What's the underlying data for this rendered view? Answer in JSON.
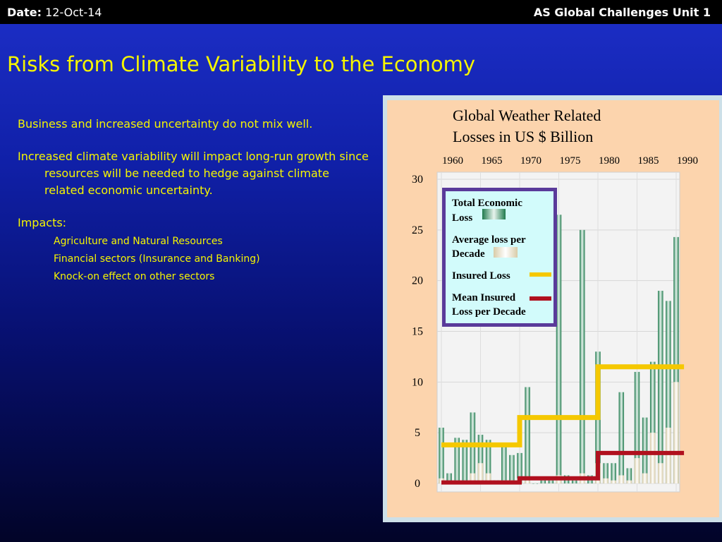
{
  "header": {
    "date_label": "Date:",
    "date_value": "12-Oct-14",
    "unit": "AS Global Challenges Unit 1"
  },
  "slide": {
    "title": "Risks from Climate Variability to the Economy",
    "bullets": [
      "Business and increased uncertainty do not mix well.",
      "Increased climate variability will impact long-run growth since  resources  will be needed to hedge against climate related economic uncertainty.",
      "Impacts:"
    ],
    "sub_bullets": [
      "Agriculture and Natural Resources",
      "Financial sectors (Insurance and Banking)",
      "Knock-on effect on other sectors"
    ]
  },
  "colors": {
    "background": "#1020a8",
    "title": "#f5f500",
    "economic_loss": "#2e8b5e",
    "average_loss": "#efe6cf",
    "insured_loss": "#f5c800",
    "mean_insured": "#b0101e",
    "legend_border": "#5a3a9a",
    "legend_bg": "#d2fbfb"
  },
  "chart_data": {
    "type": "bar",
    "title_lines": [
      "Global Weather Related",
      "Losses in US $ Billion"
    ],
    "x_ticks": [
      "1960",
      "1965",
      "1970",
      "1975",
      "1980",
      "1985",
      "1990"
    ],
    "y_ticks": [
      "0",
      "5",
      "10",
      "15",
      "20",
      "25",
      "30"
    ],
    "ylim": [
      0,
      30
    ],
    "xlim": [
      1960,
      1991
    ],
    "legend": {
      "placement": "top-left",
      "entries": [
        {
          "text": [
            "Total Economic",
            "Loss"
          ],
          "swatch": "bar"
        },
        {
          "text": [
            "Average loss per",
            "Decade"
          ],
          "swatch": "bar-light"
        },
        {
          "text": [
            "Insured Loss"
          ],
          "swatch": "line-insured"
        },
        {
          "text": [
            "Mean Insured",
            "Loss per Decade"
          ],
          "swatch": "line-mean"
        }
      ]
    },
    "total_economic_loss": {
      "years": [
        1960,
        1961,
        1962,
        1963,
        1964,
        1965,
        1966,
        1967,
        1968,
        1969,
        1970,
        1971,
        1972,
        1973,
        1974,
        1975,
        1976,
        1977,
        1978,
        1979,
        1980,
        1981,
        1982,
        1983,
        1984,
        1985,
        1986,
        1987,
        1988,
        1989,
        1990
      ],
      "values": [
        5.5,
        1,
        4.5,
        4.3,
        7,
        4.8,
        4.3,
        0.3,
        4,
        2.8,
        3,
        9.5,
        0,
        0.3,
        0.3,
        26.5,
        0.8,
        0.3,
        25,
        0.8,
        13,
        2,
        2,
        9,
        1.5,
        11,
        6.5,
        12,
        19,
        18,
        24.3
      ]
    },
    "insured_loss": {
      "years": [
        1960,
        1961,
        1962,
        1963,
        1964,
        1965,
        1966,
        1967,
        1968,
        1969,
        1970,
        1971,
        1972,
        1973,
        1974,
        1975,
        1976,
        1977,
        1978,
        1979,
        1980,
        1981,
        1982,
        1983,
        1984,
        1985,
        1986,
        1987,
        1988,
        1989,
        1990
      ],
      "values": [
        0.5,
        0,
        0.3,
        0.3,
        1,
        2,
        1,
        0,
        0.3,
        0.3,
        0.5,
        0.3,
        0,
        0,
        0,
        0.8,
        0,
        0,
        1,
        0,
        2,
        0.5,
        0.3,
        0.8,
        0.3,
        2.5,
        1,
        5,
        2,
        5.5,
        10
      ]
    },
    "average_loss_per_decade": [
      {
        "from": 1960,
        "to": 1970,
        "value": 3.8
      },
      {
        "from": 1970,
        "to": 1980,
        "value": 6.5
      },
      {
        "from": 1980,
        "to": 1991,
        "value": 11.5
      }
    ],
    "mean_insured_loss_per_decade": [
      {
        "from": 1960,
        "to": 1970,
        "value": 0.1
      },
      {
        "from": 1970,
        "to": 1980,
        "value": 0.5
      },
      {
        "from": 1980,
        "to": 1991,
        "value": 3
      }
    ]
  }
}
